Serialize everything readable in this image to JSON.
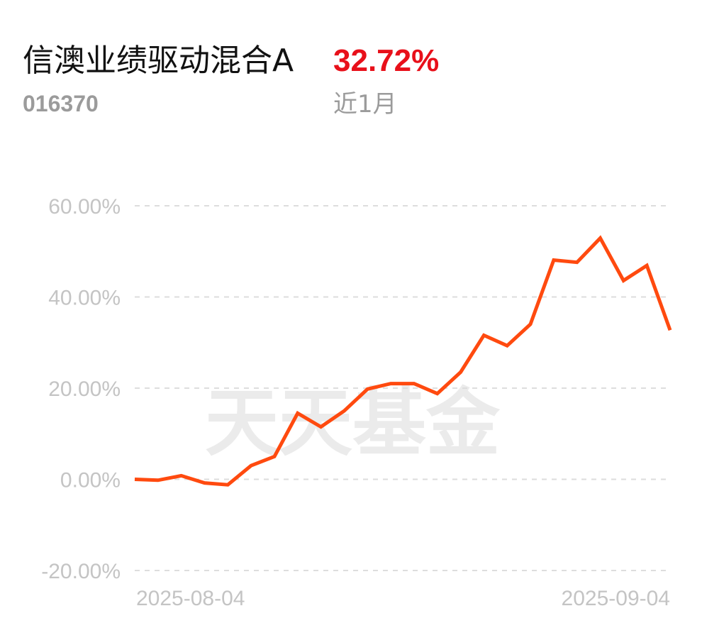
{
  "header": {
    "fund_name": "信澳业绩驱动混合A",
    "fund_code": "016370",
    "return_value": "32.72%",
    "period_label": "近1月"
  },
  "watermark": "天天基金",
  "colors": {
    "line": "#ff4a0f",
    "return_positive": "#e8101a",
    "grid": "#dddddd",
    "tick_text": "#c4c4c4",
    "watermark": "#ebebeb"
  },
  "chart_data": {
    "type": "line",
    "title": "",
    "xlabel": "",
    "ylabel": "",
    "ylim": [
      -20,
      60
    ],
    "y_ticks": [
      60,
      40,
      20,
      0,
      -20
    ],
    "y_tick_labels": [
      "60.00%",
      "40.00%",
      "20.00%",
      "0.00%",
      "-20.00%"
    ],
    "x_tick_labels": [
      "2025-08-04",
      "2025-09-04"
    ],
    "grid": "horizontal dashed",
    "series": [
      {
        "values": [
          0.0,
          -0.2,
          0.8,
          -0.8,
          -1.2,
          3.0,
          5.0,
          14.5,
          11.5,
          15.0,
          19.8,
          21.0,
          21.0,
          18.8,
          23.5,
          31.6,
          29.3,
          34.0,
          48.1,
          47.6,
          52.9,
          43.6,
          46.9,
          32.72
        ]
      }
    ]
  }
}
